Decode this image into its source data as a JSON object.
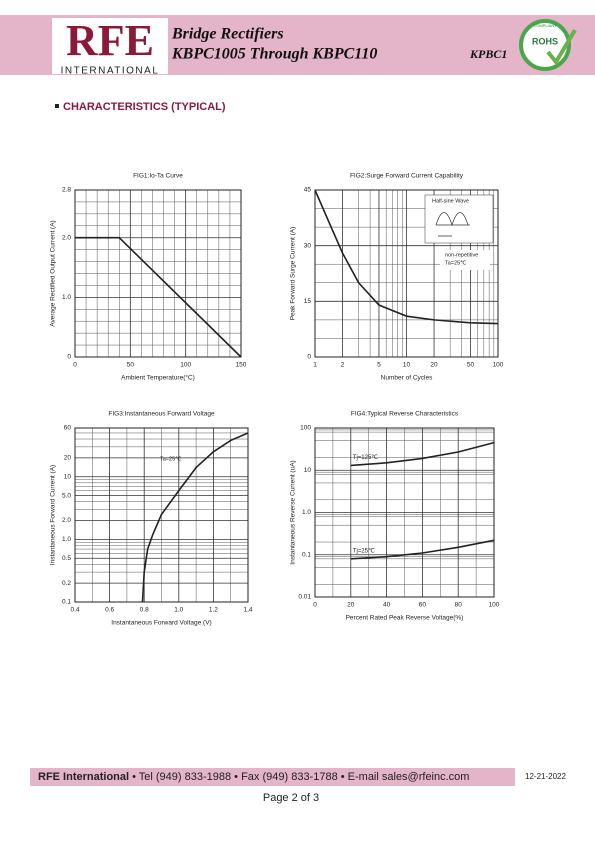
{
  "header": {
    "logo": "RFE",
    "logo_sub": "INTERNATIONAL",
    "title": "Bridge Rectifiers",
    "subtitle": "KBPC1005 Through KBPC110",
    "code": "KPBC1",
    "badge": "ROHS",
    "badge_ring": "COMPLIANT"
  },
  "section_title": "CHARACTERISTICS (TYPICAL)",
  "footer": {
    "company": "RFE International",
    "contact": "• Tel (949) 833-1988 • Fax (949) 833-1788 • E-mail sales@rfeinc.com",
    "date": "12-21-2022",
    "page": "Page 2 of 3"
  },
  "chart_data": [
    {
      "type": "line",
      "title": "FIG1:Io-Ta Curve",
      "x_label": "Ambient Temperature(°C)",
      "y_label": "Average Rectified Output Current (A)",
      "x": [
        0,
        40,
        150
      ],
      "series": [
        {
          "color": "#222222",
          "values": [
            2,
            2,
            0
          ]
        }
      ],
      "xlim": [
        0,
        150
      ],
      "xticks": [
        0,
        50,
        100,
        150
      ],
      "ylim": [
        0,
        2.8
      ],
      "yticks": [
        0,
        {
          "value": 1,
          "label": "1.0"
        },
        {
          "value": 2,
          "label": "2.0"
        },
        2.8
      ],
      "x_minor_grid": [
        10,
        20,
        30,
        40,
        60,
        70,
        80,
        90,
        110,
        120,
        130,
        140
      ],
      "y_minor_grid": [
        0.2,
        0.4,
        0.6,
        0.8,
        1.2,
        1.4,
        1.6,
        1.8,
        2.2,
        2.4,
        2.6
      ],
      "grid": true
    },
    {
      "type": "line",
      "title": "FIG2:Surge Forward Current Capability",
      "x_label": "Number of Cycles",
      "y_label": "Peak Forward Surge Current (A)",
      "x": [
        1,
        1.5,
        2,
        3,
        5,
        10,
        20,
        50,
        100
      ],
      "series": [
        {
          "color": "#222222",
          "values": [
            45,
            35,
            28,
            20,
            14,
            11,
            10,
            9.2,
            9
          ]
        }
      ],
      "xlim": [
        1,
        100
      ],
      "xscale": "log",
      "xticks": [
        1,
        2,
        5,
        10,
        20,
        50,
        100
      ],
      "ylim": [
        0,
        45
      ],
      "yticks": [
        0,
        15,
        30,
        45
      ],
      "x_minor_grid": [
        3,
        4,
        6,
        7,
        8,
        9,
        30,
        40,
        60,
        70,
        80,
        90
      ],
      "y_minor_grid": [
        5,
        10,
        20,
        25,
        35,
        40
      ],
      "grid": true,
      "annotations": [
        "Half-sine Wave",
        "non-repetitive",
        "Ta=25℃"
      ]
    },
    {
      "type": "line",
      "title": "FIG3:Instantaneous Forward Voltage",
      "x_label": "Instantaneous Forward Voltage (V)",
      "y_label": "Instantaneous Forward Current (A)",
      "x": [
        0.79,
        0.8,
        0.82,
        0.85,
        0.9,
        1.0,
        1.1,
        1.2,
        1.3,
        1.4
      ],
      "series": [
        {
          "color": "#222222",
          "values": [
            0.1,
            0.3,
            0.7,
            1.2,
            2.5,
            6,
            14,
            25,
            38,
            50
          ]
        }
      ],
      "xlim": [
        0.4,
        1.4
      ],
      "xticks": [
        0.4,
        0.6,
        0.8,
        {
          "value": 1,
          "label": "1.0"
        },
        1.2,
        {
          "value": 1.4,
          "label": "1,4"
        }
      ],
      "ylim": [
        0.1,
        60
      ],
      "yscale": "log",
      "yticks": [
        0.1,
        0.2,
        0.5,
        {
          "value": 1,
          "label": "1.0"
        },
        {
          "value": 2,
          "label": "2.0"
        },
        {
          "value": 5,
          "label": "5.0"
        },
        10,
        20,
        60
      ],
      "x_minor_grid": [
        0.5,
        0.7,
        0.9,
        1.1,
        1.3
      ],
      "y_minor_grid": [
        0.3,
        0.4,
        0.6,
        0.7,
        0.8,
        0.9,
        3,
        4,
        6,
        7,
        8,
        9,
        30,
        40,
        50
      ],
      "grid": true,
      "annotations": [
        "Ta=25℃"
      ]
    },
    {
      "type": "line",
      "title": "FIG4:Typical Reverse Characteristics",
      "x_label": "Percent Rated Peak Reverse Voltage(%)",
      "y_label": "Instantaneous Reverse Current (uA)",
      "x": [
        20,
        40,
        60,
        80,
        100
      ],
      "series": [
        {
          "name": "Tj=125℃",
          "color": "#222222",
          "values": [
            13,
            15,
            19,
            27,
            45
          ]
        },
        {
          "name": "Tj=25℃",
          "color": "#222222",
          "values": [
            0.08,
            0.09,
            0.11,
            0.15,
            0.22
          ]
        }
      ],
      "xlim": [
        0,
        100
      ],
      "xticks": [
        0,
        20,
        40,
        60,
        80,
        100
      ],
      "ylim": [
        0.01,
        100
      ],
      "yscale": "log",
      "yticks": [
        {
          "value": 0.01,
          "label": "0.01"
        },
        0.1,
        {
          "value": 1,
          "label": "1.0"
        },
        10,
        100
      ],
      "x_minor_grid": [
        10,
        30,
        50,
        70,
        90
      ],
      "y_minor_grid": [
        0.02,
        0.05,
        0.08,
        0.09,
        0.2,
        0.5,
        0.8,
        0.9,
        2,
        5,
        8,
        9,
        20,
        50,
        80,
        90
      ],
      "grid": true
    }
  ]
}
